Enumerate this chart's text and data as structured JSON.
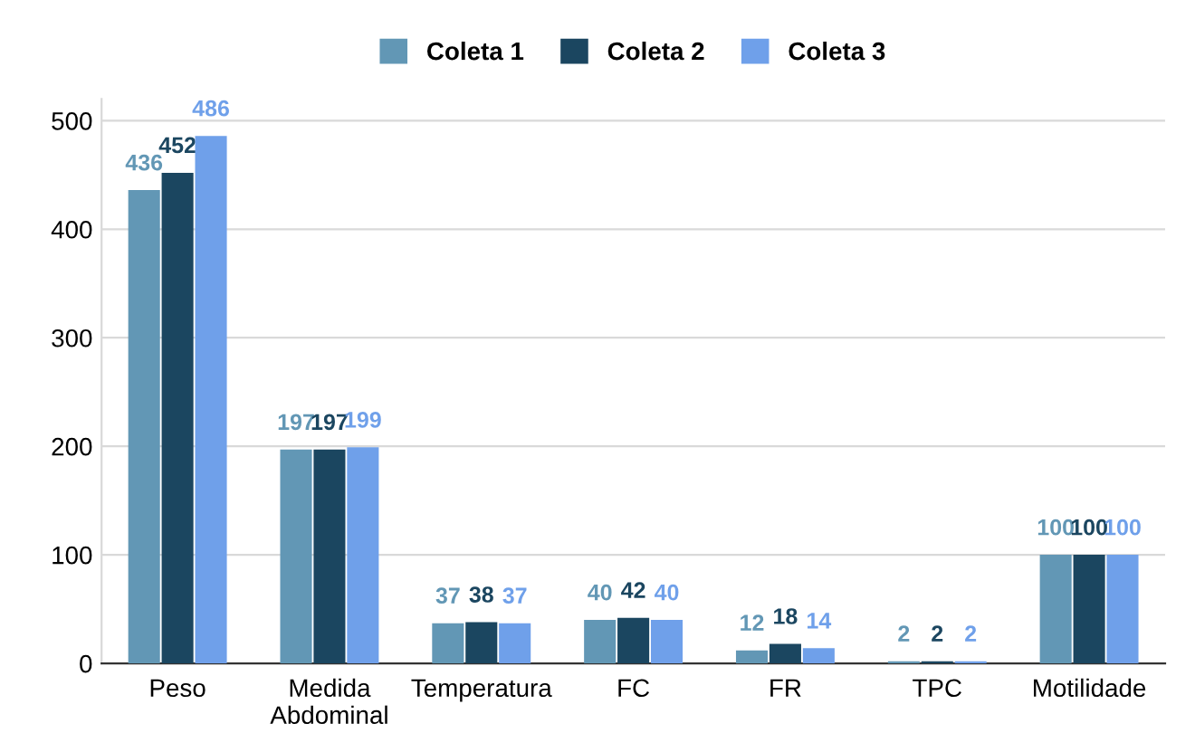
{
  "chart_data": {
    "type": "bar",
    "categories": [
      "Peso",
      "Medida\nAbdominal",
      "Temperatura",
      "FC",
      "FR",
      "TPC",
      "Motilidade"
    ],
    "series": [
      {
        "name": "Coleta 1",
        "color": "#6297b5",
        "values": [
          436,
          197,
          37,
          40,
          12,
          2,
          100
        ]
      },
      {
        "name": "Coleta 2",
        "color": "#1b4660",
        "values": [
          452,
          197,
          38,
          42,
          18,
          2,
          100
        ]
      },
      {
        "name": "Coleta 3",
        "color": "#6fa0ea",
        "values": [
          486,
          199,
          37,
          40,
          14,
          2,
          100
        ]
      }
    ],
    "ylim": [
      0,
      520
    ],
    "yticks": [
      0,
      100,
      200,
      300,
      400,
      500
    ],
    "grid": "y",
    "legend": "top",
    "data_labels": true
  }
}
